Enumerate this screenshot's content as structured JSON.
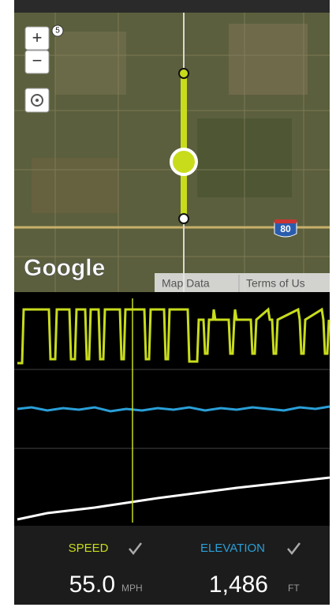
{
  "map": {
    "zoom_in": "+",
    "zoom_out": "−",
    "route_shield": "5",
    "interstate_shield": "80",
    "logo": "Google",
    "attribution": [
      "Map Data",
      "Terms of Us"
    ]
  },
  "metrics": [
    {
      "label": "SPEED",
      "value": "55.0",
      "unit": "MPH"
    },
    {
      "label": "ELEVATION",
      "value": "1,486",
      "unit": "FT"
    }
  ]
}
